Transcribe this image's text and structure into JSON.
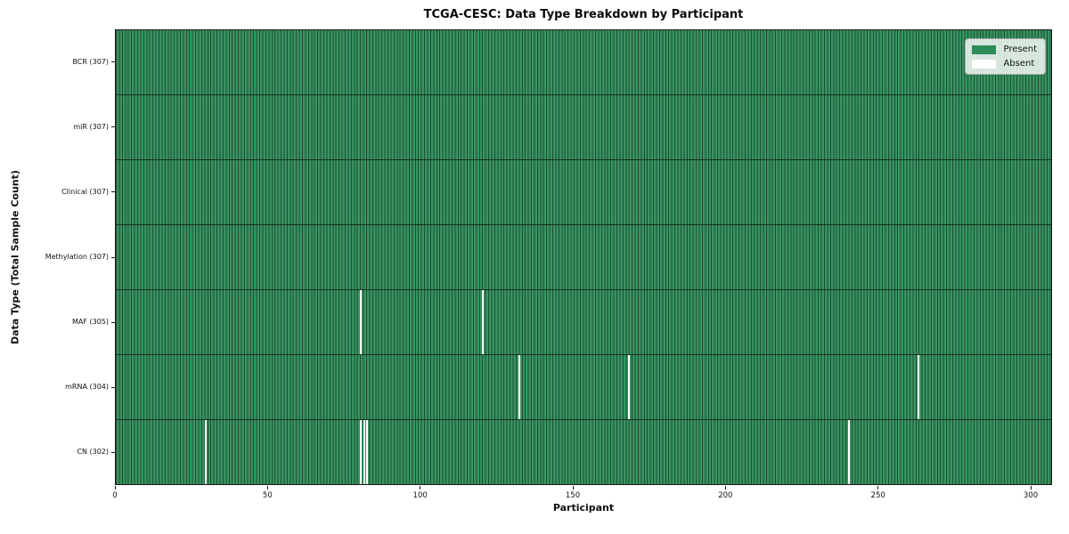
{
  "chart_data": {
    "type": "heatmap",
    "title": "TCGA-CESC: Data Type Breakdown by Participant",
    "xlabel": "Participant",
    "ylabel": "Data Type (Total Sample Count)",
    "xlim": [
      0,
      307
    ],
    "n_participants": 307,
    "x_ticks": [
      0,
      50,
      100,
      150,
      200,
      250,
      300
    ],
    "grid": false,
    "legend_position": "upper right",
    "rows": [
      {
        "label": "BCR (307)",
        "data_type": "BCR",
        "present_count": 307,
        "absent_participants": []
      },
      {
        "label": "miR (307)",
        "data_type": "miR",
        "present_count": 307,
        "absent_participants": []
      },
      {
        "label": "Clinical (307)",
        "data_type": "Clinical",
        "present_count": 307,
        "absent_participants": []
      },
      {
        "label": "Methylation (307)",
        "data_type": "Methylation",
        "present_count": 307,
        "absent_participants": []
      },
      {
        "label": "MAF (305)",
        "data_type": "MAF",
        "present_count": 305,
        "absent_participants": [
          80,
          120
        ]
      },
      {
        "label": "mRNA (304)",
        "data_type": "mRNA",
        "present_count": 304,
        "absent_participants": [
          132,
          168,
          263
        ]
      },
      {
        "label": "CN (302)",
        "data_type": "CN",
        "present_count": 302,
        "absent_participants": [
          29,
          80,
          81,
          82,
          240
        ]
      }
    ],
    "legend": [
      {
        "label": "Present",
        "color": "#2e8b57"
      },
      {
        "label": "Absent",
        "color": "#ffffff"
      }
    ],
    "colors": {
      "present_fill": "#379561",
      "bar_edge": "#204b33",
      "absent_fill": "#ffffff",
      "row_divider": "#16301f",
      "spine": "#1a1a1a"
    }
  }
}
